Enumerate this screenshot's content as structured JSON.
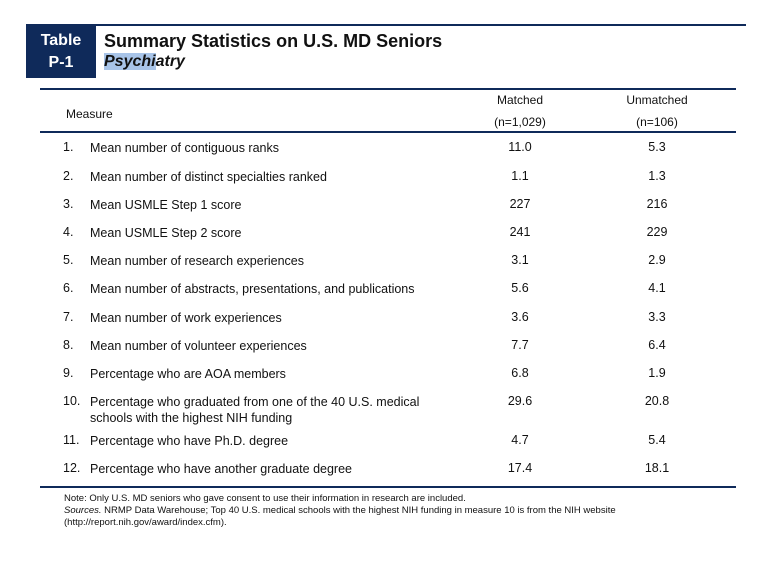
{
  "header": {
    "badge_line1": "Table",
    "badge_line2": "P-1",
    "title": "Summary Statistics on U.S. MD Seniors",
    "subtitle_highlight": "Psychi",
    "subtitle_rest": "atry"
  },
  "table": {
    "col_measure": "Measure",
    "col_matched": "Matched",
    "col_matched_n": "(n=1,029)",
    "col_unmatched": "Unmatched",
    "col_unmatched_n": "(n=106)",
    "rows": [
      {
        "num": "1.",
        "label": "Mean number of contiguous ranks",
        "matched": "11.0",
        "unmatched": "5.3"
      },
      {
        "num": "2.",
        "label": "Mean number of distinct specialties ranked",
        "matched": "1.1",
        "unmatched": "1.3"
      },
      {
        "num": "3.",
        "label": "Mean USMLE Step 1 score",
        "matched": "227",
        "unmatched": "216"
      },
      {
        "num": "4.",
        "label": "Mean USMLE Step 2 score",
        "matched": "241",
        "unmatched": "229"
      },
      {
        "num": "5.",
        "label": "Mean number of research experiences",
        "matched": "3.1",
        "unmatched": "2.9"
      },
      {
        "num": "6.",
        "label": "Mean number of abstracts, presentations, and publications",
        "matched": "5.6",
        "unmatched": "4.1"
      },
      {
        "num": "7.",
        "label": "Mean number of work experiences",
        "matched": "3.6",
        "unmatched": "3.3"
      },
      {
        "num": "8.",
        "label": "Mean number of volunteer experiences",
        "matched": "7.7",
        "unmatched": "6.4"
      },
      {
        "num": "9.",
        "label": "Percentage who are AOA members",
        "matched": "6.8",
        "unmatched": "1.9"
      },
      {
        "num": "10.",
        "label": "Percentage who graduated from one of the 40 U.S. medical schools with the highest NIH funding",
        "matched": "29.6",
        "unmatched": "20.8"
      },
      {
        "num": "11.",
        "label": "Percentage who have Ph.D. degree",
        "matched": "4.7",
        "unmatched": "5.4"
      },
      {
        "num": "12.",
        "label": "Percentage who have another graduate degree",
        "matched": "17.4",
        "unmatched": "18.1"
      }
    ]
  },
  "notes": {
    "note": "Note: Only U.S. MD seniors who gave consent to use their information in research are included.",
    "sources_label": "Sources.",
    "sources_text": " NRMP Data Warehouse; Top 40 U.S. medical schools with the highest NIH funding in measure 10 is from the NIH website (http://report.nih.gov/award/index.cfm)."
  }
}
